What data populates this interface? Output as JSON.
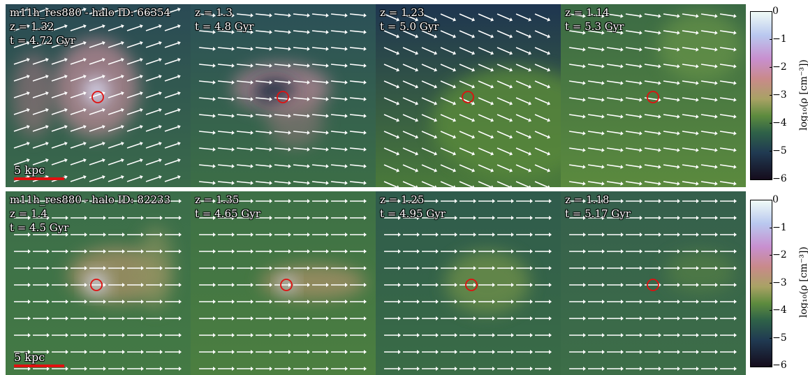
{
  "figure": {
    "colorbar": {
      "ticks": [
        "0",
        "−1",
        "−2",
        "−3",
        "−4",
        "−5",
        "−6"
      ],
      "label": "log₁₀(ρ [cm⁻³])"
    },
    "scale_label": "5 kpc",
    "rows": [
      {
        "halo_title": "m11h_res880 - halo ID: 66354",
        "panels": [
          {
            "z": "z = 1.32",
            "t": "t = 4.72 Gyr",
            "look": "core"
          },
          {
            "z": "z = 1.3",
            "t": "t = 4.8 Gyr",
            "look": "shell"
          },
          {
            "z": "z = 1.23",
            "t": "t = 5.0 Gyr",
            "look": "diffuse"
          },
          {
            "z": "z = 1.14",
            "t": "t = 5.3 Gyr",
            "look": "faint"
          }
        ]
      },
      {
        "halo_title": "m11h_res880 - halo ID: 82233",
        "panels": [
          {
            "z": "z = 1.4",
            "t": "t = 4.5 Gyr",
            "look": "tail"
          },
          {
            "z": "z = 1.35",
            "t": "t = 4.65 Gyr",
            "look": "tail2"
          },
          {
            "z": "z = 1.25",
            "t": "t = 4.95 Gyr",
            "look": "fade"
          },
          {
            "z": "z = 1.18",
            "t": "t = 5.17 Gyr",
            "look": "faint2"
          }
        ]
      }
    ],
    "colors": {
      "marker": "#e01010",
      "arrow": "#ffffff"
    }
  }
}
